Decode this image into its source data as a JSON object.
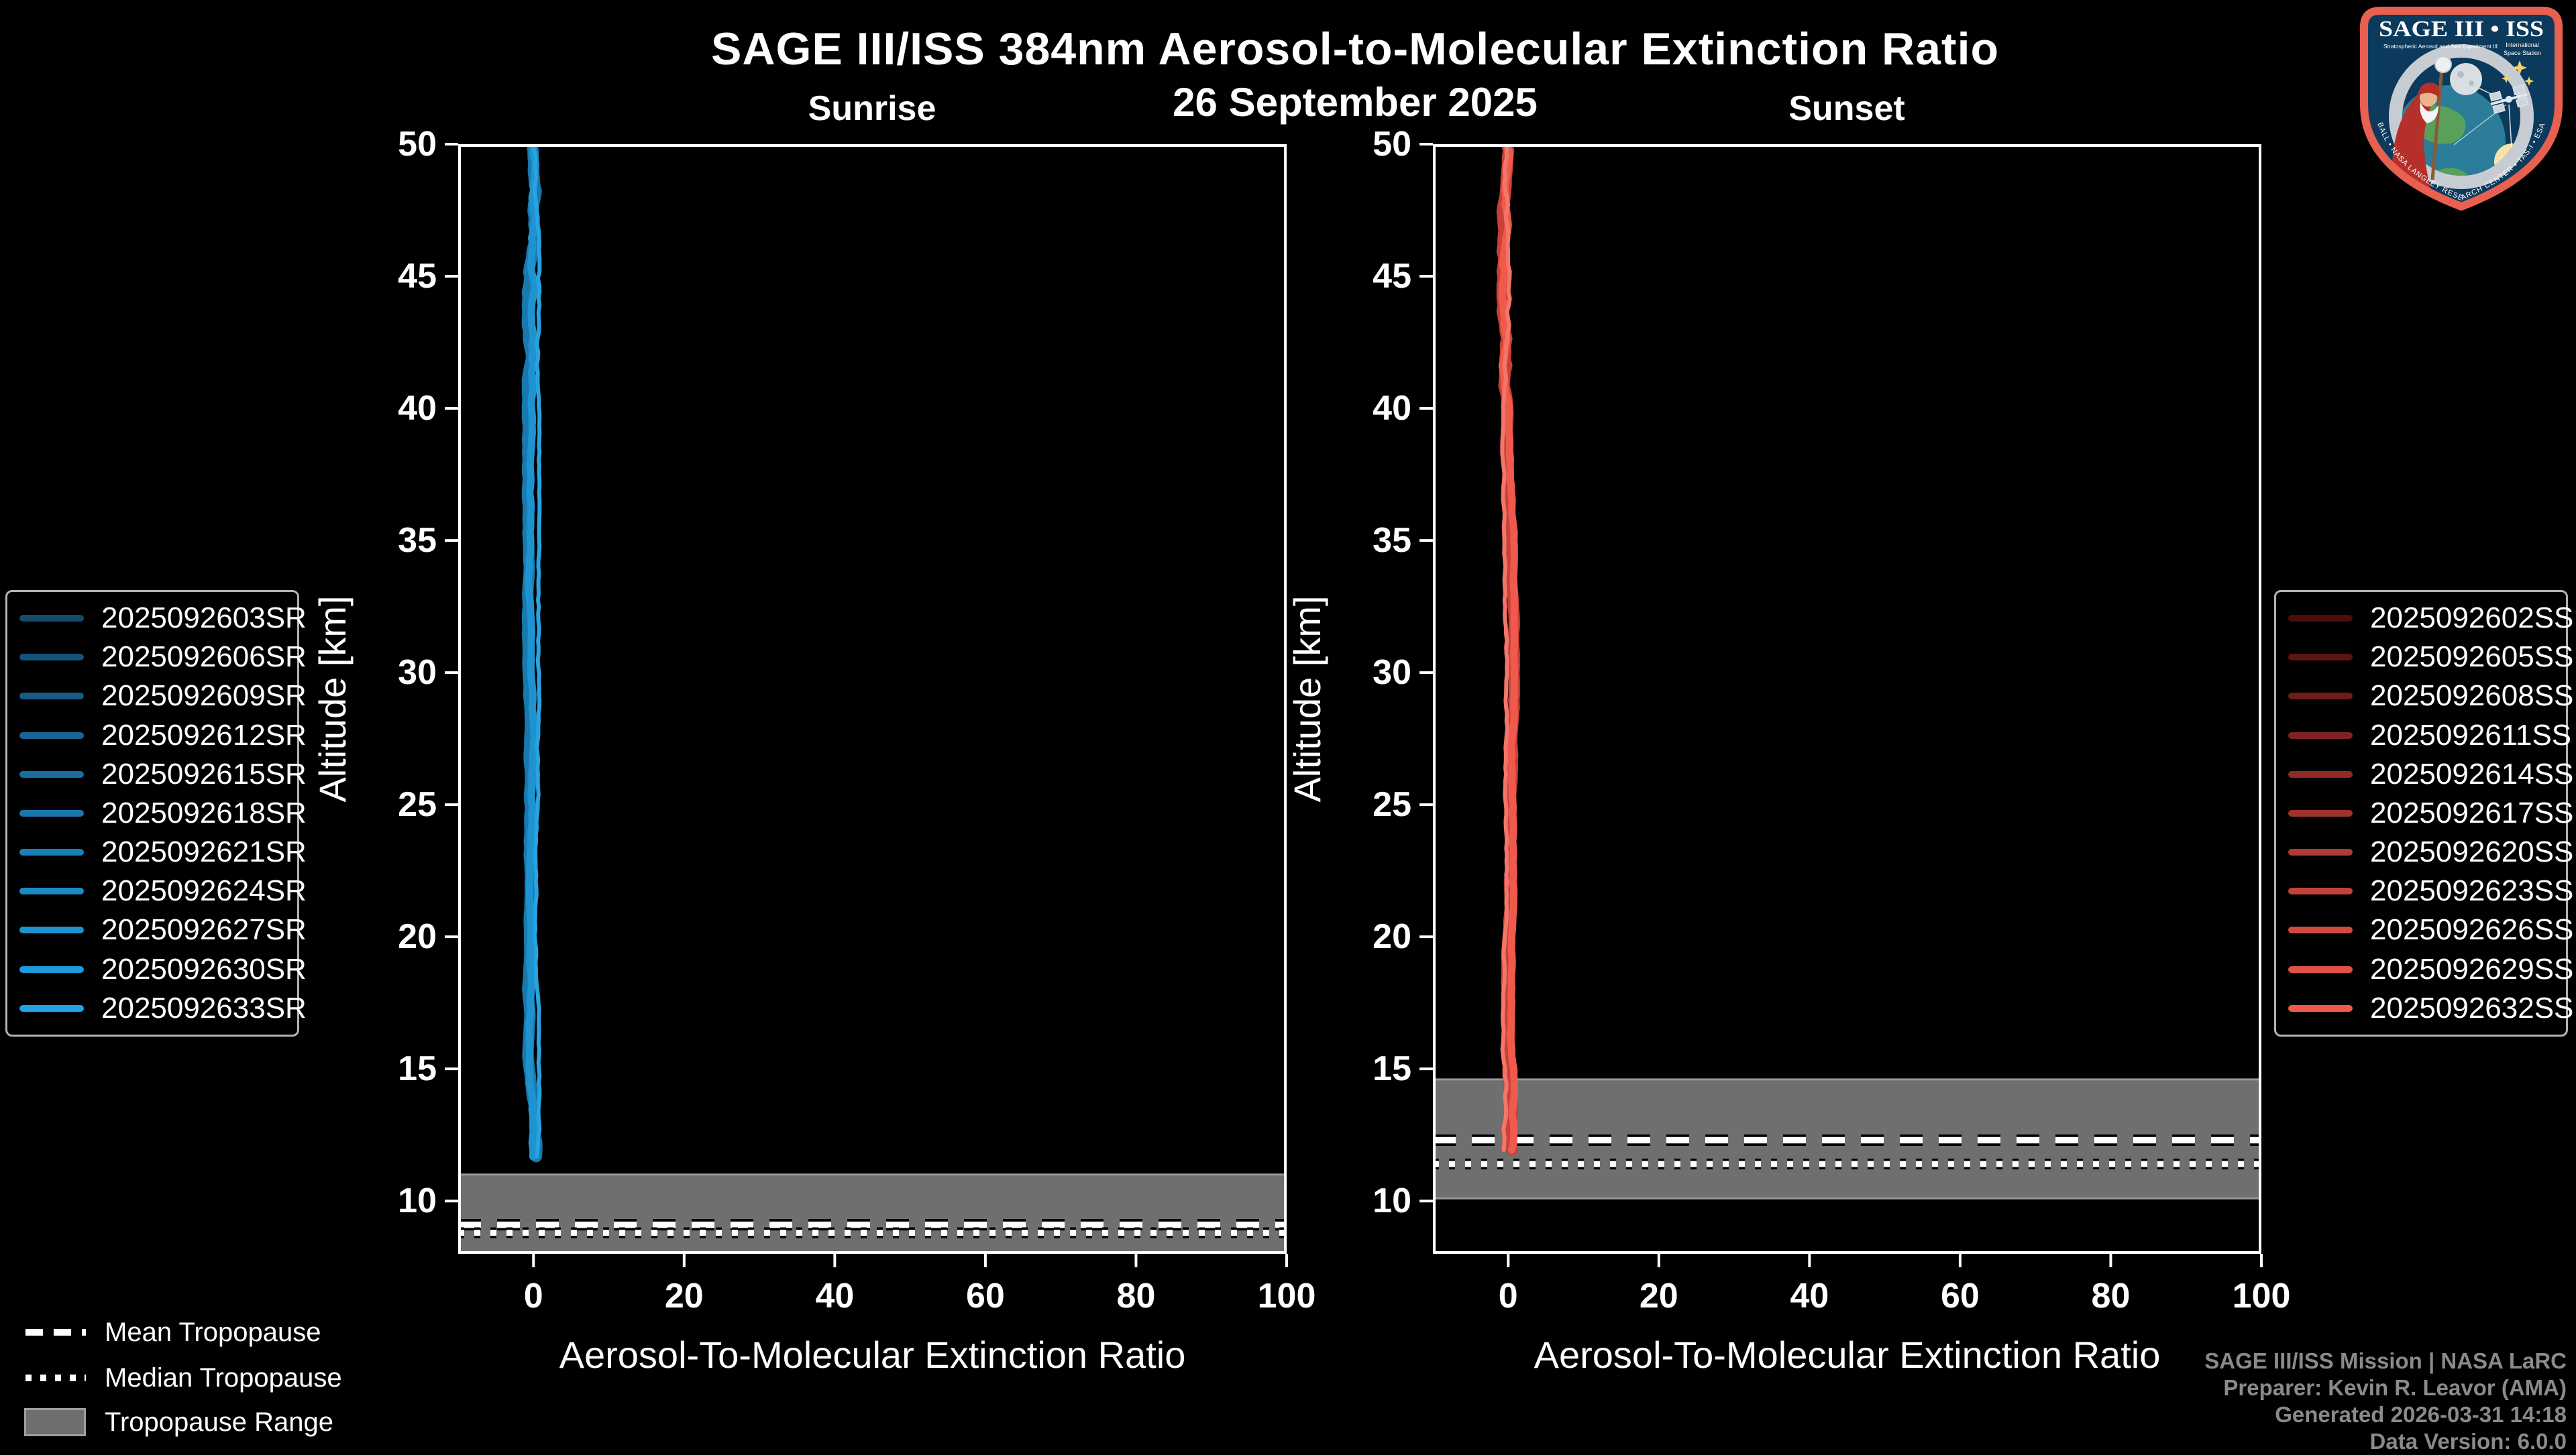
{
  "header": {
    "title": "SAGE III/ISS 384nm Aerosol-to-Molecular Extinction Ratio",
    "date": "26 September 2025",
    "left_panel_title": "Sunrise",
    "right_panel_title": "Sunset"
  },
  "axes": {
    "ylabel": "Altitude [km]",
    "xlabel": "Aerosol-To-Molecular Extinction Ratio",
    "yticks": [
      50,
      45,
      40,
      35,
      30,
      25,
      20,
      15,
      10
    ],
    "xticks": [
      0,
      20,
      40,
      60,
      80,
      100
    ],
    "xlim": [
      -10,
      100
    ],
    "ylim": [
      8,
      50
    ]
  },
  "legend_sunrise": {
    "items": [
      {
        "label": "2025092603SR",
        "color": "#134a6d"
      },
      {
        "label": "2025092606SR",
        "color": "#14537a"
      },
      {
        "label": "2025092609SR",
        "color": "#165c86"
      },
      {
        "label": "2025092612SR",
        "color": "#176593"
      },
      {
        "label": "2025092615SR",
        "color": "#186e9f"
      },
      {
        "label": "2025092618SR",
        "color": "#1977ab"
      },
      {
        "label": "2025092621SR",
        "color": "#1b80b7"
      },
      {
        "label": "2025092624SR",
        "color": "#1c89c3"
      },
      {
        "label": "2025092627SR",
        "color": "#1d92cf"
      },
      {
        "label": "2025092630SR",
        "color": "#1f9bdb"
      },
      {
        "label": "2025092633SR",
        "color": "#20a4e7"
      }
    ]
  },
  "legend_sunset": {
    "items": [
      {
        "label": "2025092602SS",
        "color": "#4d0c0e"
      },
      {
        "label": "2025092605SS",
        "color": "#5d1414"
      },
      {
        "label": "2025092608SS",
        "color": "#6e1c1a"
      },
      {
        "label": "2025092611SS",
        "color": "#7e2321"
      },
      {
        "label": "2025092614SS",
        "color": "#8e2b27"
      },
      {
        "label": "2025092617SS",
        "color": "#9f332d"
      },
      {
        "label": "2025092620SS",
        "color": "#af3b33"
      },
      {
        "label": "2025092623SS",
        "color": "#bf4339"
      },
      {
        "label": "2025092626SS",
        "color": "#d04a40"
      },
      {
        "label": "2025092629SS",
        "color": "#e05246"
      },
      {
        "label": "2025092632SS",
        "color": "#f05a4c"
      }
    ]
  },
  "tropopause_legend": {
    "mean": "Mean Tropopause",
    "median": "Median Tropopause",
    "range": "Tropopause Range"
  },
  "footer": {
    "lines": [
      "SAGE III/ISS Mission | NASA LaRC",
      "Preparer: Kevin R. Leavor (AMA)",
      "Generated 2026-03-31 14:18",
      "Data Version: 6.0.0"
    ]
  },
  "logo": {
    "title": "SAGE III • ISS",
    "subtitle_left": "Stratospheric Aerosol and Gas Experiment III",
    "subtitle_right_1": "International",
    "subtitle_right_2": "Space Station",
    "ring_text": "BALL • NASA LANGLEY RESEARCH CENTER • TAS-I • ESA"
  },
  "chart_data": [
    {
      "type": "line",
      "title": "Sunrise",
      "xlabel": "Aerosol-To-Molecular Extinction Ratio",
      "ylabel": "Altitude [km]",
      "xlim": [
        -10,
        100
      ],
      "ylim": [
        8,
        50
      ],
      "xticks": [
        0,
        20,
        40,
        60,
        80,
        100
      ],
      "yticks": [
        50,
        45,
        40,
        35,
        30,
        25,
        20,
        15,
        10
      ],
      "series": [
        {
          "name": "2025092603SR",
          "color": "#134a6d"
        },
        {
          "name": "2025092606SR",
          "color": "#14537a"
        },
        {
          "name": "2025092609SR",
          "color": "#165c86"
        },
        {
          "name": "2025092612SR",
          "color": "#176593"
        },
        {
          "name": "2025092615SR",
          "color": "#186e9f"
        },
        {
          "name": "2025092618SR",
          "color": "#1977ab"
        },
        {
          "name": "2025092621SR",
          "color": "#1b80b7"
        },
        {
          "name": "2025092624SR",
          "color": "#1c89c3"
        },
        {
          "name": "2025092627SR",
          "color": "#1d92cf"
        },
        {
          "name": "2025092630SR",
          "color": "#1f9bdb"
        },
        {
          "name": "2025092633SR",
          "color": "#20a4e7"
        }
      ],
      "profile": {
        "ratio_value_approx": 0,
        "altitude_top_km": 50,
        "altitude_bottom_km": 11.5,
        "note": "all 11 sunrise profiles overlap as a near-vertical line at ratio ~0"
      },
      "tropopause": {
        "mean_km": 9.1,
        "median_km": 8.8,
        "range_km": [
          8.0,
          11.0
        ]
      },
      "curve_colors": [
        "#1879ae",
        "#1e93cf",
        "#27a3e0"
      ]
    },
    {
      "type": "line",
      "title": "Sunset",
      "xlabel": "Aerosol-To-Molecular Extinction Ratio",
      "ylabel": "Altitude [km]",
      "xlim": [
        -10,
        100
      ],
      "ylim": [
        8,
        50
      ],
      "xticks": [
        0,
        20,
        40,
        60,
        80,
        100
      ],
      "yticks": [
        50,
        45,
        40,
        35,
        30,
        25,
        20,
        15,
        10
      ],
      "series": [
        {
          "name": "2025092602SS",
          "color": "#4d0c0e"
        },
        {
          "name": "2025092605SS",
          "color": "#5d1414"
        },
        {
          "name": "2025092608SS",
          "color": "#6e1c1a"
        },
        {
          "name": "2025092611SS",
          "color": "#7e2321"
        },
        {
          "name": "2025092614SS",
          "color": "#8e2b27"
        },
        {
          "name": "2025092617SS",
          "color": "#9f332d"
        },
        {
          "name": "2025092620SS",
          "color": "#af3b33"
        },
        {
          "name": "2025092623SS",
          "color": "#bf4339"
        },
        {
          "name": "2025092626SS",
          "color": "#d04a40"
        },
        {
          "name": "2025092629SS",
          "color": "#e05246"
        },
        {
          "name": "2025092632SS",
          "color": "#f05a4c"
        }
      ],
      "profile": {
        "ratio_value_approx": 0,
        "altitude_top_km": 50,
        "altitude_bottom_km": 11.9,
        "note": "all 11 sunset profiles overlap as a near-vertical line at ratio ~0"
      },
      "tropopause": {
        "mean_km": 12.3,
        "median_km": 11.4,
        "range_km": [
          10.1,
          14.6
        ]
      },
      "curve_colors": [
        "#c84137",
        "#ef5a4c",
        "#f4766a"
      ]
    }
  ],
  "style": {
    "background": "#000000",
    "axis_color": "#ffffff",
    "band_color": "#6f6f6f",
    "band_edge_color": "#989898",
    "footer_color": "#8a8a8a",
    "logo_border": "#e8604f",
    "logo_field": "#0c3a5c"
  }
}
